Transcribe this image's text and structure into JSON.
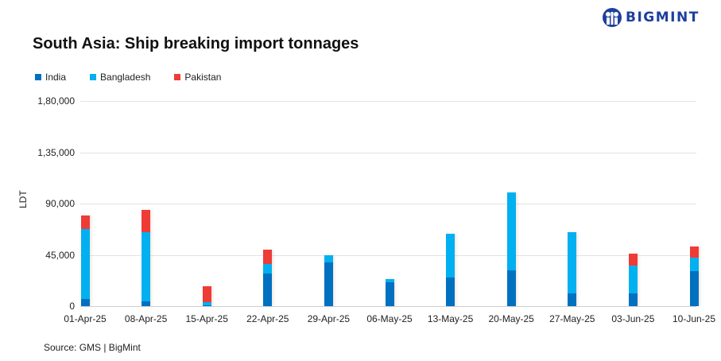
{
  "brand": {
    "name": "BIGMINT",
    "color": "#1e3f9e"
  },
  "chart_data": {
    "type": "bar",
    "stacked": true,
    "title": "South Asia: Ship breaking import tonnages",
    "xlabel": "",
    "ylabel": "LDT",
    "ylim": [
      0,
      180000
    ],
    "yticks": [
      "0",
      "45,000",
      "90,000",
      "1,35,000",
      "1,80,000"
    ],
    "ytick_values": [
      0,
      45000,
      90000,
      135000,
      180000
    ],
    "grid": true,
    "legend_position": "top-left",
    "categories": [
      "01-Apr-25",
      "08-Apr-25",
      "15-Apr-25",
      "22-Apr-25",
      "29-Apr-25",
      "06-May-25",
      "13-May-25",
      "20-May-25",
      "27-May-25",
      "03-Jun-25",
      "10-Jun-25"
    ],
    "series": [
      {
        "name": "India",
        "color": "#0070c0",
        "values": [
          6300,
          4200,
          700,
          28600,
          38400,
          20900,
          25100,
          31400,
          11200,
          11200,
          30700
        ]
      },
      {
        "name": "Bangladesh",
        "color": "#00b0f0",
        "values": [
          61400,
          60700,
          3000,
          8400,
          6300,
          2800,
          38400,
          68400,
          53700,
          24400,
          11900
        ]
      },
      {
        "name": "Pakistan",
        "color": "#ee3b36",
        "values": [
          11900,
          19500,
          13700,
          12600,
          0,
          0,
          0,
          0,
          0,
          10500,
          9800
        ]
      }
    ],
    "source": "Source: GMS | BigMint"
  }
}
